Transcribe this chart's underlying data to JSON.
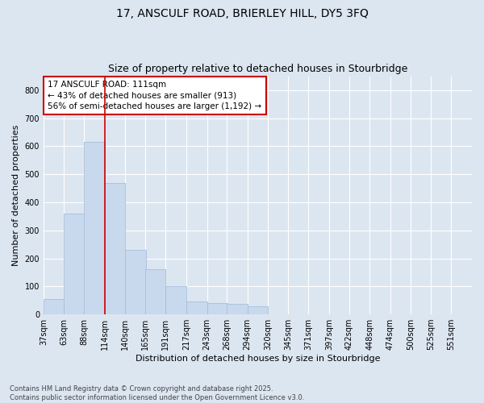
{
  "title_line1": "17, ANSCULF ROAD, BRIERLEY HILL, DY5 3FQ",
  "title_line2": "Size of property relative to detached houses in Stourbridge",
  "xlabel": "Distribution of detached houses by size in Stourbridge",
  "ylabel": "Number of detached properties",
  "bar_color": "#c8d9ee",
  "bar_edge_color": "#a0b8d8",
  "background_color": "#dce6f1",
  "plot_bg_color": "#dce6f1",
  "bins": [
    37,
    63,
    88,
    114,
    140,
    165,
    191,
    217,
    243,
    268,
    294,
    320,
    345,
    371,
    397,
    422,
    448,
    474,
    500,
    525,
    551
  ],
  "values": [
    55,
    360,
    615,
    470,
    230,
    160,
    100,
    45,
    40,
    38,
    30,
    0,
    0,
    0,
    0,
    0,
    0,
    0,
    0,
    0,
    0
  ],
  "vline_x": 114,
  "vline_color": "#cc0000",
  "annotation_text": "17 ANSCULF ROAD: 111sqm\n← 43% of detached houses are smaller (913)\n56% of semi-detached houses are larger (1,192) →",
  "annotation_box_color": "#ffffff",
  "annotation_box_edge_color": "#cc0000",
  "ylim": [
    0,
    850
  ],
  "yticks": [
    0,
    100,
    200,
    300,
    400,
    500,
    600,
    700,
    800
  ],
  "footnote": "Contains HM Land Registry data © Crown copyright and database right 2025.\nContains public sector information licensed under the Open Government Licence v3.0.",
  "title_fontsize": 10,
  "subtitle_fontsize": 9,
  "axis_label_fontsize": 8,
  "tick_fontsize": 7,
  "annotation_fontsize": 7.5
}
